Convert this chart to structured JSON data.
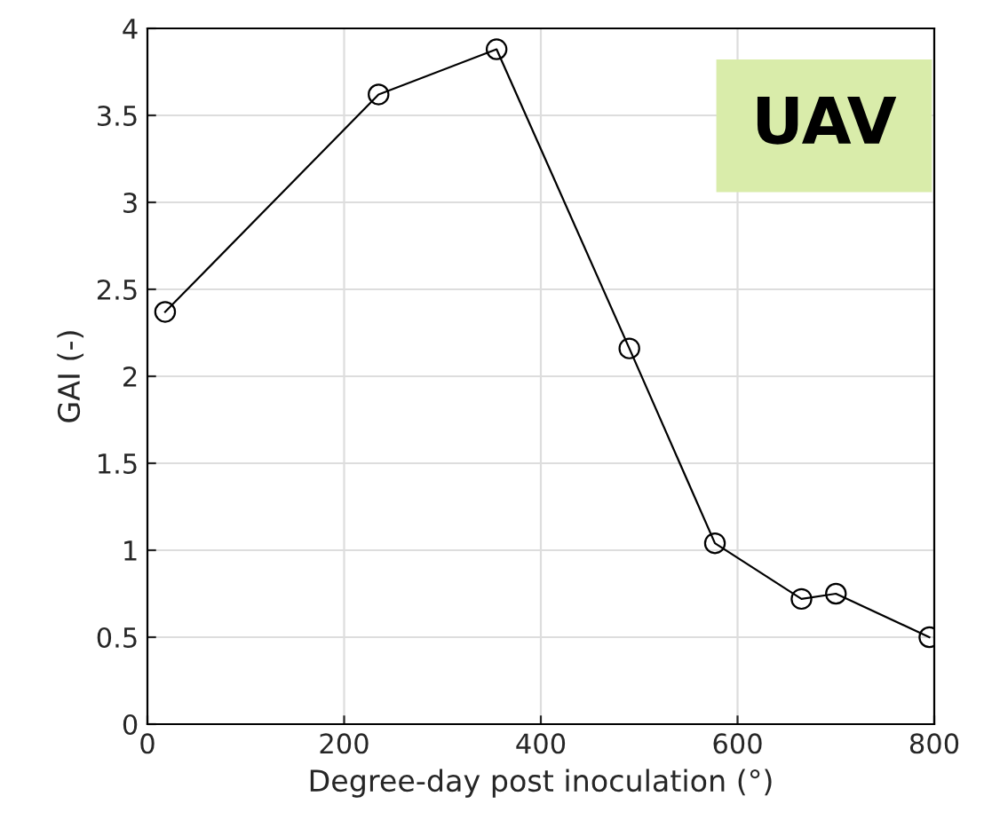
{
  "chart_data": {
    "type": "line",
    "xlabel": "Degree-day post inoculation (°)",
    "ylabel": "GAI (-)",
    "x": [
      18,
      235,
      355,
      490,
      577,
      665,
      700,
      795
    ],
    "series": [
      {
        "color": "#000000",
        "values": [
          2.37,
          3.62,
          3.88,
          2.16,
          1.04,
          0.72,
          0.75,
          0.5
        ]
      }
    ],
    "xlim": [
      0,
      800
    ],
    "xticks": [
      0,
      200,
      400,
      600,
      800
    ],
    "ylim": [
      0,
      4
    ],
    "yticks": [
      0,
      0.5,
      1,
      1.5,
      2,
      2.5,
      3,
      3.5,
      4
    ],
    "grid": true,
    "marker": "circle",
    "line_style": "solid",
    "legend": false,
    "annotations": [
      "UAV"
    ]
  }
}
